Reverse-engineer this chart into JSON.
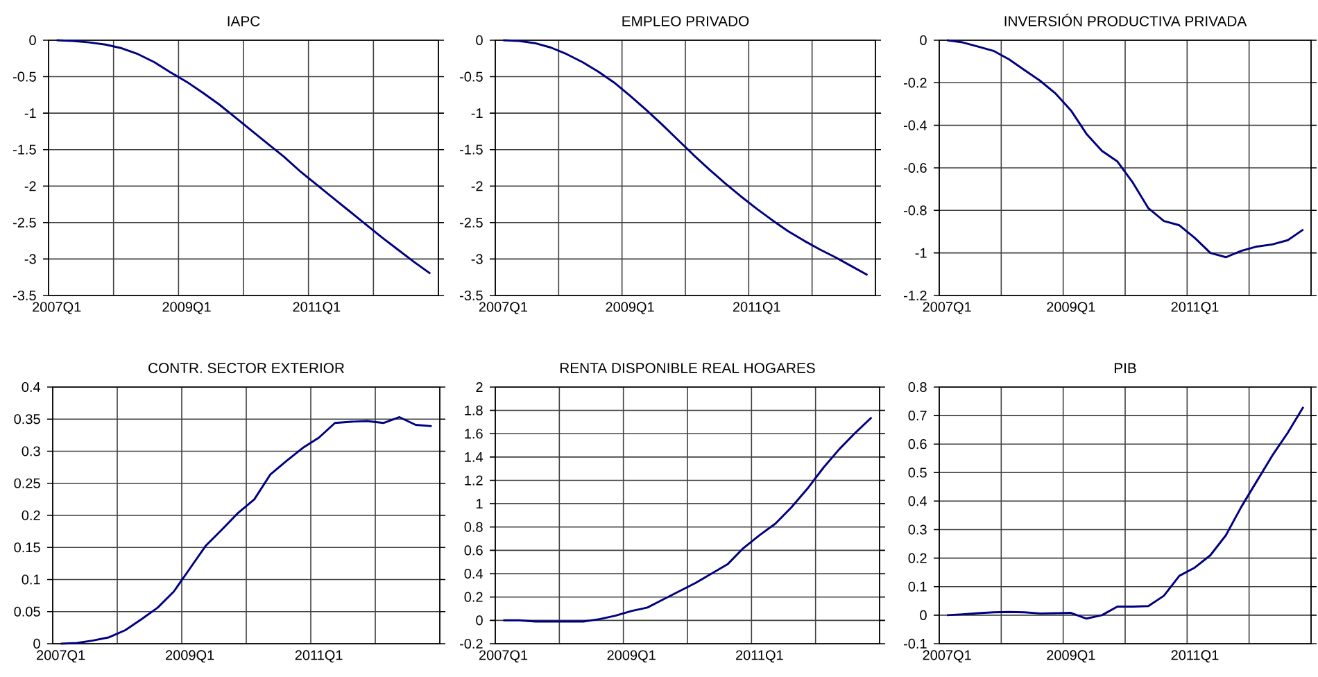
{
  "chart_data": [
    {
      "type": "line",
      "title": "IAPC",
      "categories": [
        "2007Q1",
        null,
        null,
        null,
        null,
        null,
        null,
        null,
        "2009Q1",
        null,
        null,
        null,
        null,
        null,
        null,
        null,
        "2011Q1",
        null,
        null,
        null,
        null,
        null,
        null,
        null
      ],
      "values": [
        0,
        -0.01,
        -0.03,
        -0.06,
        -0.11,
        -0.19,
        -0.3,
        -0.44,
        -0.57,
        -0.72,
        -0.88,
        -1.06,
        -1.24,
        -1.42,
        -1.6,
        -1.8,
        -1.98,
        -2.16,
        -2.34,
        -2.52,
        -2.7,
        -2.87,
        -3.04,
        -3.2
      ],
      "color": "#000080",
      "ylim": [
        -3.5,
        0
      ],
      "yticks": [
        -3.5,
        -3,
        -2.5,
        -2,
        -1.5,
        -1,
        -0.5,
        0
      ],
      "grid": true
    },
    {
      "type": "line",
      "title": "EMPLEO PRIVADO",
      "categories": [
        "2007Q1",
        null,
        null,
        null,
        null,
        null,
        null,
        null,
        "2009Q1",
        null,
        null,
        null,
        null,
        null,
        null,
        null,
        "2011Q1",
        null,
        null,
        null,
        null,
        null,
        null,
        null
      ],
      "values": [
        0,
        -0.01,
        -0.04,
        -0.1,
        -0.19,
        -0.3,
        -0.43,
        -0.58,
        -0.76,
        -0.95,
        -1.15,
        -1.36,
        -1.57,
        -1.77,
        -1.96,
        -2.14,
        -2.31,
        -2.47,
        -2.62,
        -2.75,
        -2.87,
        -2.98,
        -3.1,
        -3.22
      ],
      "color": "#000080",
      "ylim": [
        -3.5,
        0
      ],
      "yticks": [
        -3.5,
        -3,
        -2.5,
        -2,
        -1.5,
        -1,
        -0.5,
        0
      ],
      "grid": true
    },
    {
      "type": "line",
      "title": "INVERSIÓN PRODUCTIVA PRIVADA",
      "categories": [
        "2007Q1",
        null,
        null,
        null,
        null,
        null,
        null,
        null,
        "2009Q1",
        null,
        null,
        null,
        null,
        null,
        null,
        null,
        "2011Q1",
        null,
        null,
        null,
        null,
        null,
        null,
        null
      ],
      "values": [
        0,
        -0.01,
        -0.03,
        -0.05,
        -0.09,
        -0.14,
        -0.19,
        -0.25,
        -0.33,
        -0.44,
        -0.52,
        -0.57,
        -0.67,
        -0.79,
        -0.85,
        -0.87,
        -0.93,
        -1.0,
        -1.02,
        -0.99,
        -0.97,
        -0.96,
        -0.94,
        -0.89
      ],
      "color": "#000080",
      "ylim": [
        -1.2,
        0
      ],
      "yticks": [
        -1.2,
        -1,
        -0.8,
        -0.6,
        -0.4,
        -0.2,
        0
      ],
      "grid": true
    },
    {
      "type": "line",
      "title": "CONTR. SECTOR EXTERIOR",
      "categories": [
        "2007Q1",
        null,
        null,
        null,
        null,
        null,
        null,
        null,
        "2009Q1",
        null,
        null,
        null,
        null,
        null,
        null,
        null,
        "2011Q1",
        null,
        null,
        null,
        null,
        null,
        null,
        null
      ],
      "values": [
        0,
        0.001,
        0.005,
        0.01,
        0.021,
        0.038,
        0.056,
        0.081,
        0.117,
        0.153,
        0.178,
        0.204,
        0.225,
        0.264,
        0.285,
        0.305,
        0.321,
        0.344,
        0.346,
        0.347,
        0.344,
        0.353,
        0.341,
        0.339
      ],
      "color": "#000080",
      "ylim": [
        0,
        0.4
      ],
      "yticks": [
        0,
        0.05,
        0.1,
        0.15,
        0.2,
        0.25,
        0.3,
        0.35,
        0.4
      ],
      "grid": true
    },
    {
      "type": "line",
      "title": "RENTA DISPONIBLE REAL HOGARES",
      "categories": [
        "2007Q1",
        null,
        null,
        null,
        null,
        null,
        null,
        null,
        "2009Q1",
        null,
        null,
        null,
        null,
        null,
        null,
        null,
        "2011Q1",
        null,
        null,
        null,
        null,
        null,
        null,
        null
      ],
      "values": [
        0,
        0,
        -0.01,
        -0.01,
        -0.01,
        -0.01,
        0.01,
        0.04,
        0.08,
        0.11,
        0.18,
        0.25,
        0.32,
        0.4,
        0.48,
        0.62,
        0.73,
        0.83,
        0.97,
        1.13,
        1.31,
        1.47,
        1.61,
        1.74
      ],
      "color": "#000080",
      "ylim": [
        -0.2,
        2
      ],
      "yticks": [
        -0.2,
        0,
        0.2,
        0.4,
        0.6,
        0.8,
        1,
        1.2,
        1.4,
        1.6,
        1.8,
        2
      ],
      "grid": true
    },
    {
      "type": "line",
      "title": "PIB",
      "categories": [
        "2007Q1",
        null,
        null,
        null,
        null,
        null,
        null,
        null,
        "2009Q1",
        null,
        null,
        null,
        null,
        null,
        null,
        null,
        "2011Q1",
        null,
        null,
        null,
        null,
        null,
        null,
        null
      ],
      "values": [
        0,
        0.003,
        0.007,
        0.01,
        0.011,
        0.01,
        0.006,
        0.007,
        0.008,
        -0.012,
        0.0,
        0.03,
        0.03,
        0.032,
        0.068,
        0.138,
        0.167,
        0.21,
        0.28,
        0.38,
        0.47,
        0.56,
        0.64,
        0.73
      ],
      "color": "#000080",
      "ylim": [
        -0.1,
        0.8
      ],
      "yticks": [
        -0.1,
        0,
        0.1,
        0.2,
        0.3,
        0.4,
        0.5,
        0.6,
        0.7,
        0.8
      ],
      "grid": true
    }
  ]
}
